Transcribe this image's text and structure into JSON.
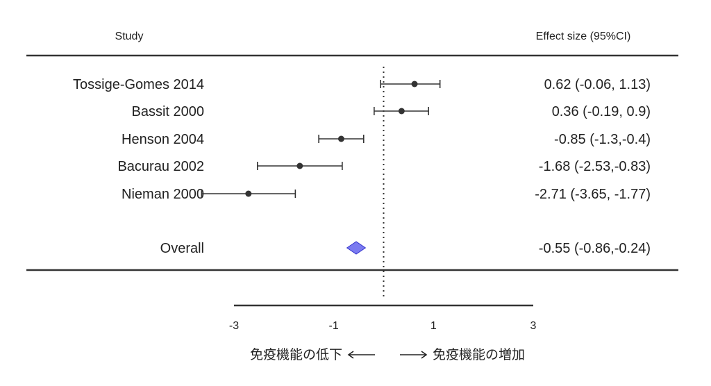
{
  "chart_data": {
    "type": "forest",
    "header": {
      "study": "Study",
      "effect": "Effect size (95%CI)"
    },
    "studies": [
      {
        "name": "Tossige-Gomes 2014",
        "estimate": 0.62,
        "lower": -0.06,
        "upper": 1.13,
        "label": "0.62 (-0.06, 1.13)"
      },
      {
        "name": "Bassit 2000",
        "estimate": 0.36,
        "lower": -0.19,
        "upper": 0.9,
        "label": "0.36 (-0.19, 0.9)"
      },
      {
        "name": "Henson 2004",
        "estimate": -0.85,
        "lower": -1.3,
        "upper": -0.4,
        "label": "-0.85 (-1.3,-0.4)"
      },
      {
        "name": "Bacurau 2002",
        "estimate": -1.68,
        "lower": -2.53,
        "upper": -0.83,
        "label": "-1.68 (-2.53,-0.83)"
      },
      {
        "name": "Nieman 2000",
        "estimate": -2.71,
        "lower": -3.65,
        "upper": -1.77,
        "label": "-2.71 (-3.65, -1.77)"
      }
    ],
    "overall": {
      "name": "Overall",
      "estimate": -0.55,
      "lower": -0.86,
      "upper": -0.24,
      "label": "-0.55 (-0.86,-0.24)"
    },
    "x_ticks": [
      -3,
      -1,
      1,
      3
    ],
    "xlim": [
      -3,
      3
    ],
    "reference_line": 0,
    "direction_labels": {
      "left": "免疫機能の低下",
      "right": "免疫機能の増加"
    },
    "colors": {
      "point": "#333333",
      "diamond_fill": "#7b7bf0",
      "diamond_stroke": "#3333cc",
      "rule": "#333333"
    }
  }
}
